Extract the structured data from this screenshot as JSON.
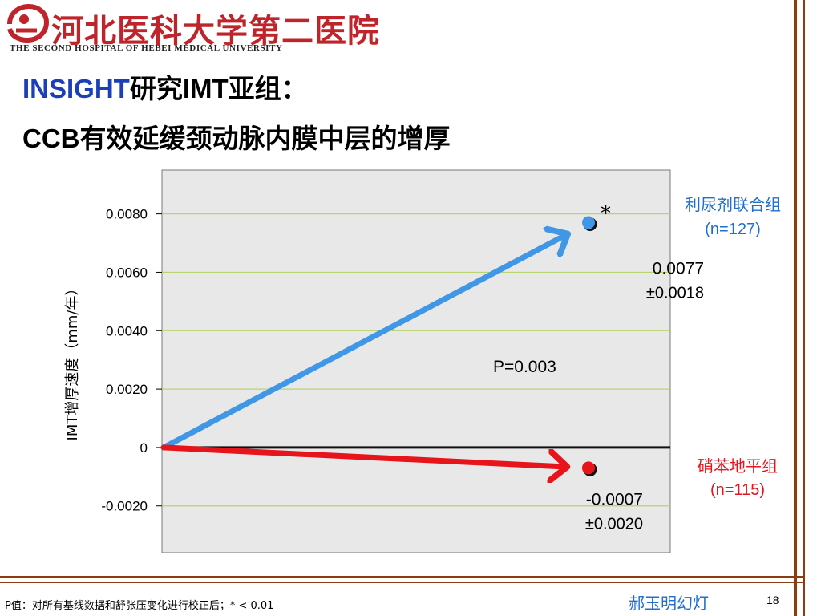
{
  "header": {
    "logo_name": "河北医科大学第二医院",
    "logo_subtitle": "THE SECOND HOSPITAL OF HEBEI MEDICAL UNIVERSITY",
    "logo_color": "#c0242b"
  },
  "title": {
    "line1_accent": "INSIGHT",
    "line1_rest": "研究IMT亚组：",
    "line2": "CCB有效延缓颈动脉内膜中层的增厚",
    "accent_color": "#1a3fb8"
  },
  "chart_data": {
    "type": "scatter",
    "ylabel": "IMT增厚速度（mm/年）",
    "ylim": [
      -0.0036,
      0.0095
    ],
    "yticks": [
      -0.002,
      0,
      0.002,
      0.004,
      0.006,
      0.008
    ],
    "ytick_labels": [
      "-0.0020",
      "0",
      "0.0020",
      "0.0040",
      "0.0060",
      "0.0080"
    ],
    "grid": true,
    "origin_value": 0,
    "series": [
      {
        "key": "diuretic",
        "name": "利尿剂联合组",
        "n_label": "(n=127)",
        "value": 0.0077,
        "value_label": "0.0077",
        "sd_label": "±0.0018",
        "star": "*",
        "color": "#3f97e6",
        "label_color": "#1f6fd1"
      },
      {
        "key": "nifedipine",
        "name": "硝苯地平组",
        "n_label": "(n=115)",
        "value": -0.0007,
        "value_label": "-0.0007",
        "sd_label": "±0.0020",
        "star": "",
        "color": "#e8141b",
        "label_color": "#e8141b"
      }
    ],
    "annotation": "P=0.003"
  },
  "footer": {
    "footnote": "P值：对所有基线数据和舒张压变化进行校正后；* < 0.01",
    "author": "郝玉明幻灯",
    "page_number": "18"
  },
  "colors": {
    "plot_bg": "#e8e8e8",
    "gridline": "#b9d46a",
    "frame": "#8b3d10"
  }
}
